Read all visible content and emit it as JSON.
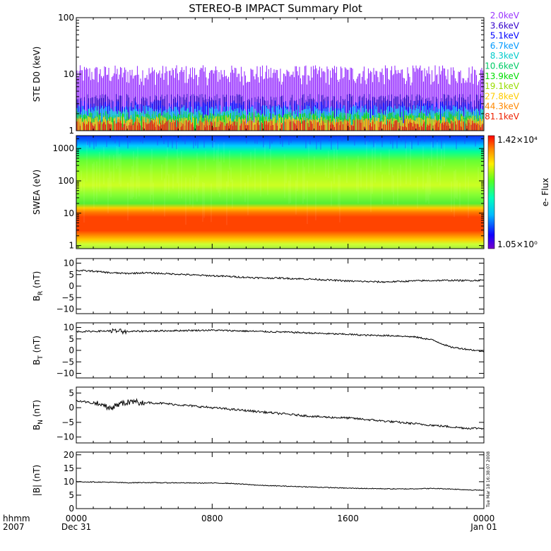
{
  "chart_data": {
    "type": "line",
    "title": "STEREO-B IMPACT Summary Plot",
    "x_axis": {
      "row1_label": "hhmm",
      "row2_label": "2007",
      "ticks": [
        {
          "t": 0,
          "time": "0000",
          "date": "Dec 31"
        },
        {
          "t": 8,
          "time": "0800",
          "date": ""
        },
        {
          "t": 16,
          "time": "1600",
          "date": ""
        },
        {
          "t": 24,
          "time": "0000",
          "date": "Jan 01"
        }
      ],
      "range_hours": [
        0,
        24
      ]
    },
    "timestamp": "Tue Mar 18 16:38:07 2008",
    "panels": [
      {
        "id": "ste",
        "type": "bar",
        "ylabel": "STE D0 (keV)",
        "scale": "log",
        "ylim": [
          1,
          100
        ],
        "ticks": [
          {
            "v": 1,
            "label": "1"
          },
          {
            "v": 10,
            "label": "10"
          },
          {
            "v": 100,
            "label": "100"
          }
        ],
        "legend": [
          {
            "label": "2.0keV",
            "color": "#9933ff",
            "level": 9
          },
          {
            "label": "3.6keV",
            "color": "#3300cc",
            "level": 3.8
          },
          {
            "label": "5.1keV",
            "color": "#0000ff",
            "level": 2.9
          },
          {
            "label": "6.7keV",
            "color": "#0099ff",
            "level": 2.4
          },
          {
            "label": "8.3keV",
            "color": "#00cccc",
            "level": 2.1
          },
          {
            "label": "10.6keV",
            "color": "#00cc66",
            "level": 1.9
          },
          {
            "label": "13.9keV",
            "color": "#00dd00",
            "level": 1.75
          },
          {
            "label": "19.1keV",
            "color": "#99dd00",
            "level": 1.6
          },
          {
            "label": "27.8keV",
            "color": "#ffcc00",
            "level": 1.5
          },
          {
            "label": "44.3keV",
            "color": "#ff8800",
            "level": 1.4
          },
          {
            "label": "81.1keV",
            "color": "#ee2200",
            "level": 1.3
          }
        ]
      },
      {
        "id": "swea",
        "type": "heatmap",
        "ylabel": "SWEA (eV)",
        "scale": "log",
        "ylim": [
          0.8,
          2500
        ],
        "ticks": [
          {
            "v": 1,
            "label": "1"
          },
          {
            "v": 10,
            "label": "10"
          },
          {
            "v": 100,
            "label": "100"
          },
          {
            "v": 1000,
            "label": "1000"
          }
        ],
        "colorbar": {
          "label": "e- Flux",
          "max": "1.42×10⁴",
          "min": "1.05×10⁰"
        }
      },
      {
        "id": "br",
        "type": "line",
        "ylabel": "BR (nT)",
        "ylabel_main": "B",
        "ylabel_sub": "R",
        "ylabel_unit": "(nT)",
        "ylim": [
          -12,
          12
        ],
        "ticks": [
          {
            "v": -10,
            "label": "−10"
          },
          {
            "v": -5,
            "label": "−5"
          },
          {
            "v": 0,
            "label": "0"
          },
          {
            "v": 5,
            "label": "5"
          },
          {
            "v": 10,
            "label": "10"
          }
        ],
        "x": [
          0,
          1,
          2,
          3,
          4,
          5,
          6,
          7,
          8,
          9,
          10,
          11,
          12,
          13,
          14,
          15,
          16,
          17,
          18,
          19,
          20,
          21,
          22,
          23,
          24
        ],
        "y": [
          6.8,
          6.5,
          5.8,
          5.5,
          5.8,
          5.5,
          5.2,
          4.8,
          4.5,
          4.2,
          3.8,
          3.5,
          3.5,
          3.2,
          3.0,
          2.6,
          2.2,
          2.0,
          1.8,
          2.0,
          2.3,
          2.4,
          2.5,
          2.4,
          2.6
        ]
      },
      {
        "id": "bt",
        "type": "line",
        "ylabel": "BT (nT)",
        "ylabel_main": "B",
        "ylabel_sub": "T",
        "ylabel_unit": "(nT)",
        "ylim": [
          -12,
          12
        ],
        "ticks": [
          {
            "v": -10,
            "label": "−10"
          },
          {
            "v": -5,
            "label": "−5"
          },
          {
            "v": 0,
            "label": "0"
          },
          {
            "v": 5,
            "label": "5"
          },
          {
            "v": 10,
            "label": "10"
          }
        ],
        "x": [
          0,
          1,
          2,
          3,
          4,
          5,
          6,
          7,
          8,
          9,
          10,
          11,
          12,
          13,
          14,
          15,
          16,
          17,
          18,
          19,
          20,
          21,
          22,
          23,
          24
        ],
        "y": [
          8.2,
          8.3,
          8.5,
          8.2,
          8.4,
          8.5,
          8.6,
          8.7,
          8.8,
          8.6,
          8.4,
          8.2,
          8.0,
          7.8,
          7.5,
          7.2,
          7.0,
          6.6,
          6.5,
          6.3,
          5.8,
          4.5,
          1.5,
          0.5,
          -0.5
        ]
      },
      {
        "id": "bn",
        "type": "line",
        "ylabel": "BN (nT)",
        "ylabel_main": "B",
        "ylabel_sub": "N",
        "ylabel_unit": "(nT)",
        "ylim": [
          -12,
          7
        ],
        "ticks": [
          {
            "v": -10,
            "label": "−10"
          },
          {
            "v": -5,
            "label": "−5"
          },
          {
            "v": 0,
            "label": "0"
          },
          {
            "v": 5,
            "label": "5"
          }
        ],
        "x": [
          0,
          1,
          2,
          3,
          4,
          5,
          6,
          7,
          8,
          9,
          10,
          11,
          12,
          13,
          14,
          15,
          16,
          17,
          18,
          19,
          20,
          21,
          22,
          23,
          24
        ],
        "y": [
          2.5,
          1.5,
          0.0,
          2.0,
          1.8,
          1.5,
          1.0,
          0.5,
          0.0,
          -0.5,
          -1.0,
          -1.5,
          -2.0,
          -2.5,
          -3.0,
          -3.3,
          -3.5,
          -4.0,
          -4.5,
          -5.0,
          -5.5,
          -6.0,
          -6.5,
          -7.0,
          -7.0
        ]
      },
      {
        "id": "bmag",
        "type": "line",
        "ylabel": "|B| (nT)",
        "ylim": [
          0,
          21
        ],
        "ticks": [
          {
            "v": 0,
            "label": "0"
          },
          {
            "v": 5,
            "label": "5"
          },
          {
            "v": 10,
            "label": "10"
          },
          {
            "v": 15,
            "label": "15"
          },
          {
            "v": 20,
            "label": "20"
          }
        ],
        "x": [
          0,
          1,
          2,
          3,
          4,
          5,
          6,
          7,
          8,
          9,
          10,
          11,
          12,
          13,
          14,
          15,
          16,
          17,
          18,
          19,
          20,
          21,
          22,
          23,
          24
        ],
        "y": [
          10.0,
          9.9,
          9.8,
          9.6,
          9.7,
          9.6,
          9.6,
          9.5,
          9.5,
          9.4,
          9.0,
          8.6,
          8.4,
          8.2,
          8.0,
          7.8,
          7.6,
          7.5,
          7.4,
          7.3,
          7.4,
          7.5,
          7.3,
          7.0,
          6.8
        ]
      }
    ]
  }
}
